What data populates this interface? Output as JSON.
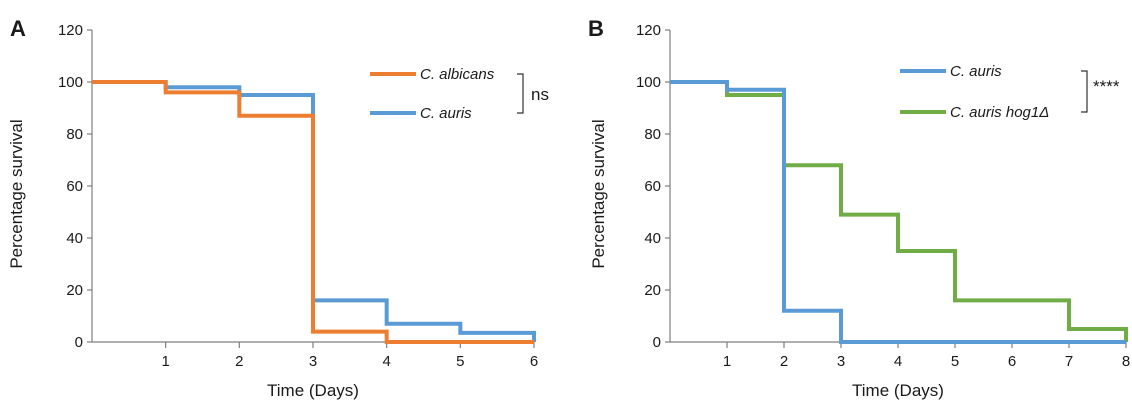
{
  "colors": {
    "orange": "#ED7D31",
    "blue": "#5B9BD5",
    "green": "#70AD47",
    "axis": "#7f7f7f"
  },
  "chart_data": [
    {
      "type": "line",
      "panel_label": "A",
      "step": true,
      "xlabel": "Time (Days)",
      "ylabel": "Percentage survival",
      "xlim": [
        0,
        6
      ],
      "ylim": [
        0,
        120
      ],
      "x_ticks": [
        "1",
        "2",
        "3",
        "4",
        "5",
        "6"
      ],
      "y_ticks": [
        "0",
        "20",
        "40",
        "60",
        "80",
        "100",
        "120"
      ],
      "grid": false,
      "legend_position": "top-right",
      "series": [
        {
          "name": "C. albicans",
          "color": "#ED7D31",
          "x": [
            0,
            1,
            2,
            3,
            4,
            6
          ],
          "y": [
            100,
            96,
            87,
            4,
            0,
            0
          ]
        },
        {
          "name": "C. auris",
          "color": "#5B9BD5",
          "x": [
            0,
            1,
            2,
            3,
            4,
            5,
            6
          ],
          "y": [
            100,
            98,
            95,
            16,
            7,
            3.5,
            0
          ]
        }
      ],
      "annotation": "ns"
    },
    {
      "type": "line",
      "panel_label": "B",
      "step": true,
      "xlabel": "Time (Days)",
      "ylabel": "Percentage survival",
      "xlim": [
        0,
        8
      ],
      "ylim": [
        0,
        120
      ],
      "x_ticks": [
        "1",
        "2",
        "3",
        "4",
        "5",
        "6",
        "7",
        "8"
      ],
      "y_ticks": [
        "0",
        "20",
        "40",
        "60",
        "80",
        "100",
        "120"
      ],
      "grid": false,
      "legend_position": "top-right",
      "series": [
        {
          "name": "C. auris",
          "color": "#5B9BD5",
          "x": [
            0,
            1,
            2,
            3,
            8
          ],
          "y": [
            100,
            97,
            12,
            0,
            0
          ]
        },
        {
          "name": "C. auris hog1Δ",
          "color": "#70AD47",
          "x": [
            0,
            1,
            2,
            3,
            4,
            5,
            7,
            8
          ],
          "y": [
            100,
            95,
            68,
            49,
            35,
            16,
            5,
            0
          ]
        }
      ],
      "annotation": "****"
    }
  ]
}
